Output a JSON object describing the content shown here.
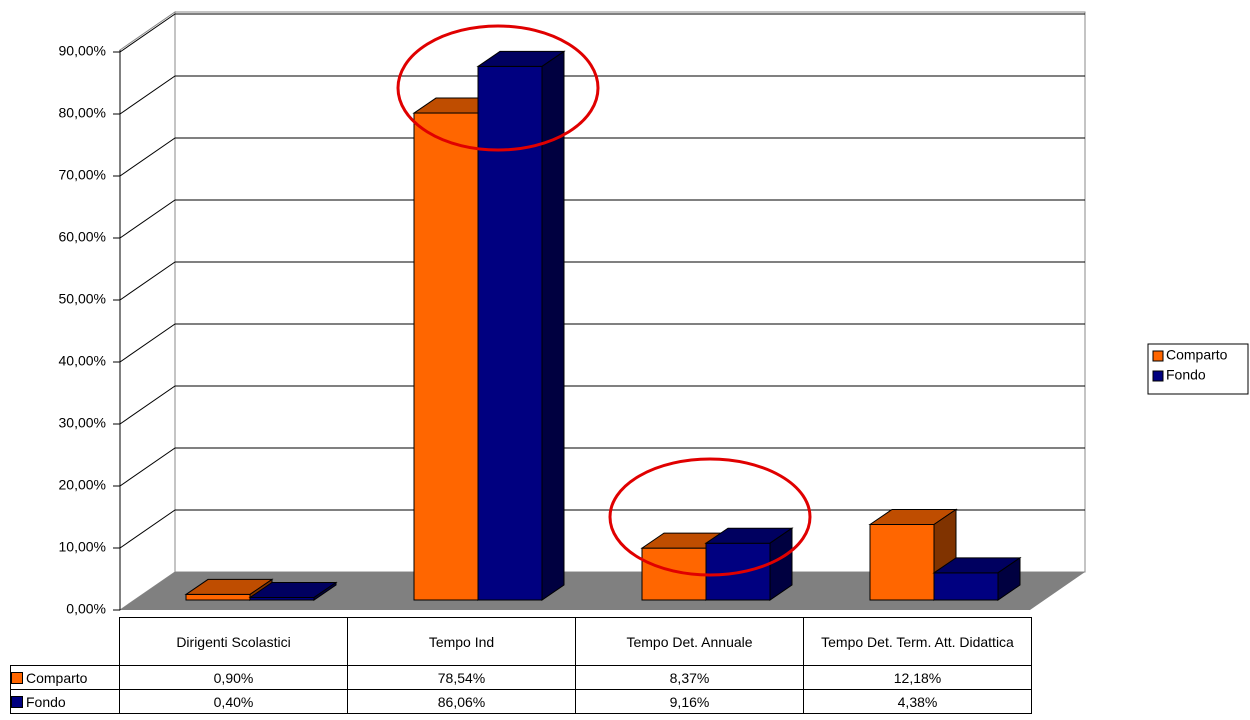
{
  "chart_data": {
    "type": "bar",
    "categories": [
      "Dirigenti Scolastici",
      "Tempo Ind",
      "Tempo Det. Annuale",
      "Tempo Det. Term. Att. Didattica"
    ],
    "series": [
      {
        "name": "Comparto",
        "color": "#ff6600",
        "values": [
          0.9,
          78.54,
          8.37,
          12.18
        ],
        "value_labels": [
          "0,90%",
          "78,54%",
          "8,37%",
          "12,18%"
        ]
      },
      {
        "name": "Fondo",
        "color": "#000080",
        "values": [
          0.4,
          86.06,
          9.16,
          4.38
        ],
        "value_labels": [
          "0,40%",
          "86,06%",
          "9,16%",
          "4,38%"
        ]
      }
    ],
    "ylim": [
      0,
      90
    ],
    "yticks": [
      {
        "value": 0,
        "label": "0,00%"
      },
      {
        "value": 10,
        "label": "10,00%"
      },
      {
        "value": 20,
        "label": "20,00%"
      },
      {
        "value": 30,
        "label": "30,00%"
      },
      {
        "value": 40,
        "label": "40,00%"
      },
      {
        "value": 50,
        "label": "50,00%"
      },
      {
        "value": 60,
        "label": "60,00%"
      },
      {
        "value": 70,
        "label": "70,00%"
      },
      {
        "value": 80,
        "label": "80,00%"
      },
      {
        "value": 90,
        "label": "90,00%"
      }
    ],
    "grid": true,
    "legend": "right"
  }
}
